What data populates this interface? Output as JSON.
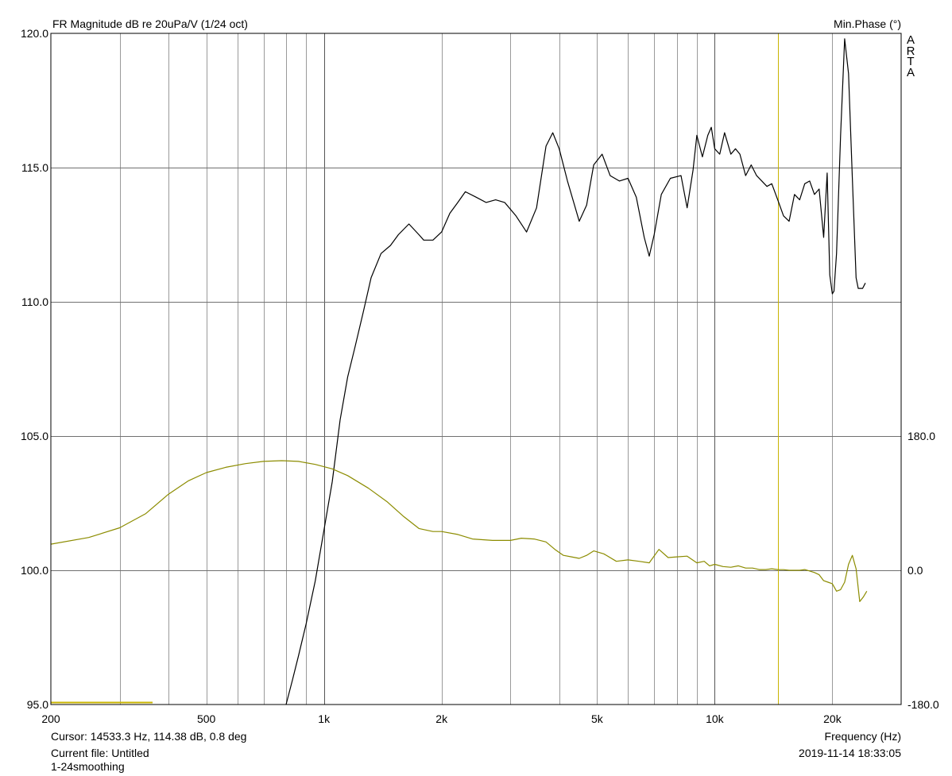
{
  "header": {
    "title": "FR Magnitude dB re 20uPa/V (1/24 oct)",
    "right_title": "Min.Phase (°)",
    "watermark": "ARTA"
  },
  "footer": {
    "cursor": "Cursor: 14533.3 Hz, 114.38 dB, 0.8 deg",
    "file": "Current file: Untitled",
    "smoothing": "1-24smoothing",
    "timestamp": "2019-11-14  18:33:05"
  },
  "chart_data": {
    "type": "line",
    "xlabel": "Frequency (Hz)",
    "x_scale": "log",
    "xlim": [
      200,
      30000
    ],
    "x_ticks": [
      200,
      500,
      1000,
      2000,
      5000,
      10000,
      20000
    ],
    "x_tick_labels": [
      "200",
      "500",
      "1k",
      "2k",
      "5k",
      "10k",
      "20k"
    ],
    "ylim": [
      95,
      120
    ],
    "y_ticks": [
      95,
      100,
      105,
      110,
      115,
      120
    ],
    "y_tick_labels": [
      "95.0",
      "100.0",
      "105.0",
      "110.0",
      "115.0",
      "120.0"
    ],
    "y2lim": [
      -180,
      720
    ],
    "y2_ticks": [
      -180,
      0,
      180
    ],
    "y2_tick_labels": [
      "-180.0",
      "0.0",
      "180.0"
    ],
    "grid": true,
    "cursor_x": 14533.3,
    "colors": {
      "magnitude": "#000000",
      "phase": "#8c8c00",
      "cursor": "#c8b400",
      "grid": "#9a9a9a"
    },
    "series": [
      {
        "axis": "left",
        "x": [
          800,
          830,
          860,
          900,
          950,
          1000,
          1050,
          1100,
          1150,
          1200,
          1260,
          1320,
          1400,
          1480,
          1550,
          1650,
          1750,
          1800,
          1900,
          2000,
          2100,
          2200,
          2300,
          2450,
          2600,
          2750,
          2900,
          3100,
          3300,
          3500,
          3700,
          3850,
          4000,
          4200,
          4500,
          4700,
          4900,
          5150,
          5400,
          5700,
          6000,
          6300,
          6600,
          6800,
          7000,
          7300,
          7700,
          8200,
          8500,
          8800,
          9000,
          9300,
          9600,
          9800,
          10000,
          10300,
          10600,
          11000,
          11300,
          11600,
          12000,
          12400,
          12800,
          13200,
          13600,
          14000,
          14500,
          15000,
          15500,
          16000,
          16500,
          17000,
          17500,
          18000,
          18500,
          19000,
          19400,
          19700,
          20000,
          20200,
          20500,
          21000,
          21500,
          22000,
          22500,
          23000,
          23300,
          23600,
          23900,
          24300
        ],
        "y": [
          95.0,
          95.9,
          96.8,
          98.0,
          99.6,
          101.5,
          103.3,
          105.6,
          107.2,
          108.3,
          109.6,
          110.9,
          111.8,
          112.1,
          112.5,
          112.9,
          112.5,
          112.3,
          112.3,
          112.6,
          113.3,
          113.7,
          114.1,
          113.9,
          113.7,
          113.8,
          113.7,
          113.2,
          112.6,
          113.5,
          115.8,
          116.3,
          115.7,
          114.5,
          113.0,
          113.6,
          115.1,
          115.5,
          114.7,
          114.5,
          114.6,
          113.9,
          112.4,
          111.7,
          112.5,
          114.0,
          114.6,
          114.7,
          113.5,
          114.9,
          116.2,
          115.4,
          116.2,
          116.5,
          115.7,
          115.5,
          116.3,
          115.5,
          115.7,
          115.5,
          114.7,
          115.1,
          114.7,
          114.5,
          114.3,
          114.4,
          113.8,
          113.2,
          113.0,
          114.0,
          113.8,
          114.4,
          114.5,
          114.0,
          114.2,
          112.4,
          114.8,
          111.0,
          110.3,
          110.4,
          111.8,
          116.2,
          119.8,
          118.5,
          114.6,
          110.9,
          110.5,
          110.5,
          110.5,
          110.7
        ]
      },
      {
        "axis": "right",
        "x": [
          200,
          250,
          300,
          350,
          400,
          450,
          500,
          560,
          630,
          700,
          780,
          860,
          950,
          1050,
          1150,
          1300,
          1450,
          1600,
          1750,
          1900,
          2000,
          2200,
          2400,
          2700,
          3000,
          3200,
          3450,
          3700,
          3900,
          4100,
          4300,
          4500,
          4700,
          4900,
          5200,
          5600,
          6000,
          6400,
          6800,
          7200,
          7600,
          8000,
          8500,
          9000,
          9400,
          9700,
          10000,
          10500,
          11000,
          11500,
          12000,
          12500,
          13000,
          13500,
          14000,
          14500,
          15000,
          15500,
          16000,
          16500,
          17000,
          17500,
          18000,
          18500,
          19000,
          19500,
          20000,
          20500,
          21000,
          21500,
          22000,
          22500,
          23000,
          23500,
          24000,
          24500
        ],
        "y": [
          35,
          44,
          57,
          76,
          102,
          120,
          131,
          138,
          143,
          146,
          147,
          146,
          142,
          136,
          127,
          110,
          92,
          72,
          56,
          52,
          52,
          48,
          42,
          40,
          40,
          43,
          42,
          38,
          28,
          20,
          18,
          16,
          20,
          26,
          22,
          12,
          14,
          12,
          10,
          28,
          17,
          18,
          19,
          10,
          12,
          6,
          8,
          5,
          4,
          6,
          3,
          3,
          1,
          1,
          2,
          1,
          0.8,
          0,
          0,
          0,
          1,
          -1,
          -3,
          -6,
          -14,
          -16,
          -18,
          -28,
          -26,
          -16,
          8,
          20,
          2,
          -42,
          -36,
          -28
        ]
      }
    ]
  }
}
